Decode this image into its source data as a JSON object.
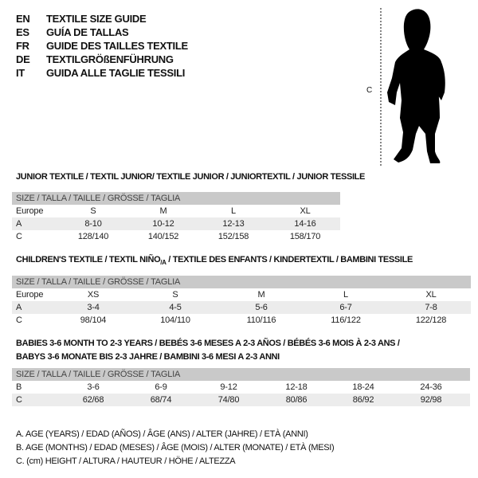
{
  "titles": [
    {
      "code": "EN",
      "text": "TEXTILE SIZE GUIDE"
    },
    {
      "code": "ES",
      "text": "GUÍA DE TALLAS"
    },
    {
      "code": "FR",
      "text": "GUIDE DES TAILLES TEXTILE"
    },
    {
      "code": "DE",
      "text": "TEXTILGRÖßENFÜHRUNG"
    },
    {
      "code": "IT",
      "text": "GUIDA ALLE TAGLIE TESSILI"
    }
  ],
  "figure": {
    "height_label": "C",
    "icon": "child-silhouette"
  },
  "junior": {
    "title": "JUNIOR TEXTILE / TEXTIL JUNIOR/ TEXTILE JUNIOR / JUNIORTEXTIL / JUNIOR TESSILE",
    "header": "SIZE / TALLA / TAILLE / GRÖSSE / TAGLIA",
    "rows": [
      {
        "label": "Europe",
        "values": [
          "S",
          "M",
          "L",
          "XL"
        ]
      },
      {
        "label": "A",
        "values": [
          "8-10",
          "10-12",
          "12-13",
          "14-16"
        ]
      },
      {
        "label": "C",
        "values": [
          "128/140",
          "140/152",
          "152/158",
          "158/170"
        ]
      }
    ]
  },
  "children": {
    "title_pre": "CHILDREN'S TEXTILE / TEXTIL NIÑO",
    "title_sub": "/A",
    "title_post": " / TEXTILE DES ENFANTS / KINDERTEXTIL / BAMBINI TESSILE",
    "header": "SIZE / TALLA / TAILLE / GRÖSSE / TAGLIA",
    "rows": [
      {
        "label": "Europe",
        "values": [
          "XS",
          "S",
          "M",
          "L",
          "XL"
        ]
      },
      {
        "label": "A",
        "values": [
          "3-4",
          "4-5",
          "5-6",
          "6-7",
          "7-8"
        ]
      },
      {
        "label": "C",
        "values": [
          "98/104",
          "104/110",
          "110/116",
          "116/122",
          "122/128"
        ]
      }
    ]
  },
  "babies": {
    "title_line1": "BABIES 3-6 MONTH TO 2-3 YEARS / BEBÉS 3-6 MESES A 2-3 AÑOS / BÉBÉS 3-6 MOIS À 2-3 ANS /",
    "title_line2": "BABYS 3-6 MONATE BIS 2-3 JAHRE / BAMBINI 3-6 MESI A 2-3 ANNI",
    "header": "SIZE / TALLA / TAILLE / GRÖSSE / TAGLIA",
    "rows": [
      {
        "label": "B",
        "values": [
          "3-6",
          "6-9",
          "9-12",
          "12-18",
          "18-24",
          "24-36"
        ]
      },
      {
        "label": "C",
        "values": [
          "62/68",
          "68/74",
          "74/80",
          "80/86",
          "86/92",
          "92/98"
        ]
      }
    ]
  },
  "footnotes": [
    "A. AGE (YEARS) / EDAD (AÑOS) / ÂGE (ANS) / ALTER (JAHRE) / ETÀ (ANNI)",
    "B. AGE (MONTHS) / EDAD (MESES) / ÂGE (MOIS) / ALTER (MONATE) / ETÀ (MESI)",
    "C. (cm) HEIGHT / ALTURA / HAUTEUR / HÖHE / ALTEZZA"
  ]
}
